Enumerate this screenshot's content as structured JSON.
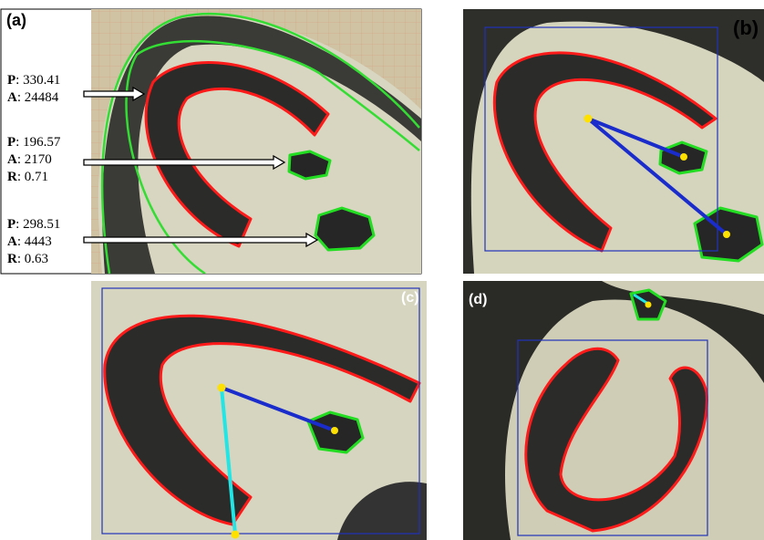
{
  "panels": [
    {
      "label": "(a)"
    },
    {
      "label": "(b)"
    },
    {
      "label": "(c)"
    },
    {
      "label": "(d)"
    }
  ],
  "annotations": [
    {
      "lines": [
        {
          "key": "P",
          "value": ": 330.41"
        },
        {
          "key": "A",
          "value": ": 24484"
        }
      ]
    },
    {
      "lines": [
        {
          "key": "P",
          "value": ": 196.57"
        },
        {
          "key": "A",
          "value": ": 2170"
        },
        {
          "key": "R",
          "value": ": 0.71"
        }
      ]
    },
    {
      "lines": [
        {
          "key": "P",
          "value": ": 298.51"
        },
        {
          "key": "A",
          "value": ": 4443"
        },
        {
          "key": "R",
          "value": ": 0.63"
        }
      ]
    }
  ]
}
